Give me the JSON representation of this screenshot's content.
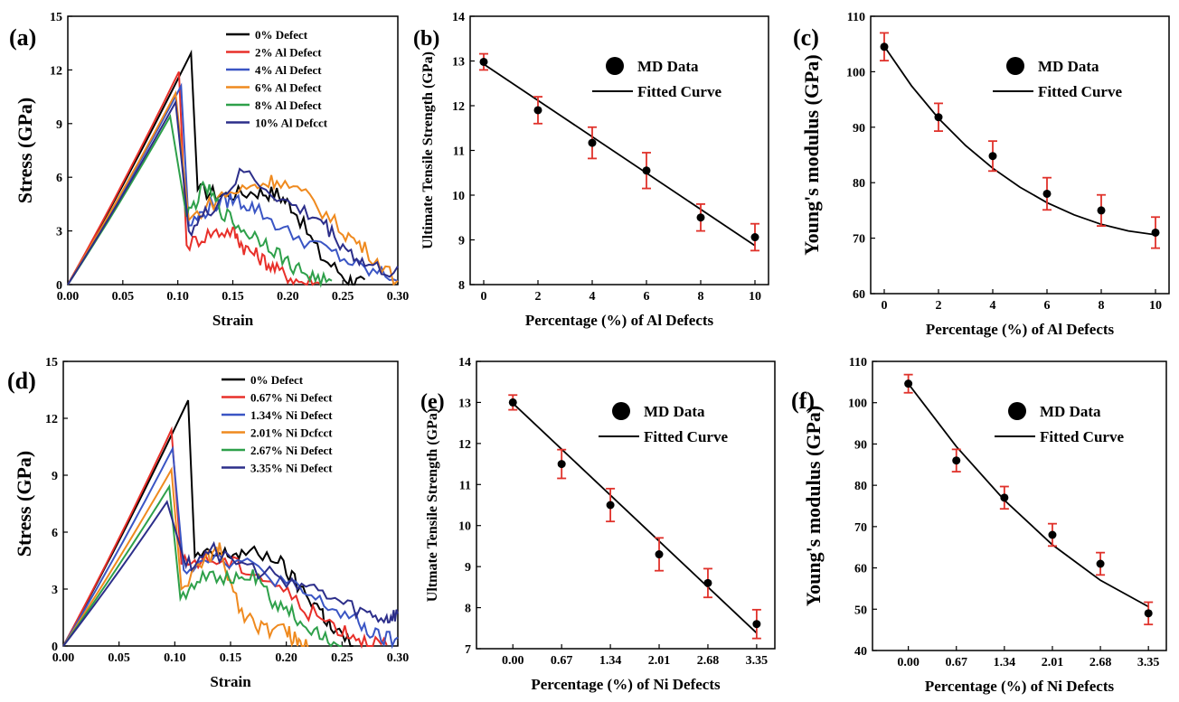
{
  "chart_data": [
    {
      "panel_label": "(a)",
      "type": "line",
      "xlabel": "Strain",
      "ylabel": "Stress (GPa)",
      "xlim": [
        0,
        0.3
      ],
      "ylim": [
        0,
        15
      ],
      "xticks": [
        "0.00",
        "0.05",
        "0.10",
        "0.15",
        "0.20",
        "0.25",
        "0.30"
      ],
      "yticks": [
        "0",
        "3",
        "6",
        "9",
        "12",
        "15"
      ],
      "legend_position": "top-right",
      "series": [
        {
          "name": "0% Defect",
          "color": "#000000",
          "peak": [
            0.112,
            12.95
          ],
          "drop": [
            0.118,
            5.3
          ],
          "wiggle": [
            [
              0.14,
              5.0
            ],
            [
              0.17,
              5.2
            ],
            [
              0.19,
              5.1
            ],
            [
              0.205,
              4.3
            ],
            [
              0.23,
              1.6
            ],
            [
              0.255,
              0.3
            ],
            [
              0.27,
              0.0
            ]
          ]
        },
        {
          "name": "2% Al Defect",
          "color": "#e8302a",
          "peak": [
            0.101,
            11.9
          ],
          "drop": [
            0.108,
            2.2
          ],
          "wiggle": [
            [
              0.13,
              2.9
            ],
            [
              0.15,
              3.0
            ],
            [
              0.16,
              2.1
            ],
            [
              0.175,
              1.5
            ],
            [
              0.19,
              0.8
            ],
            [
              0.21,
              0.2
            ],
            [
              0.23,
              0.0
            ]
          ]
        },
        {
          "name": "4% Al Defect",
          "color": "#3a55c4",
          "peak": [
            0.103,
            11.1
          ],
          "drop": [
            0.11,
            3.3
          ],
          "wiggle": [
            [
              0.13,
              4.4
            ],
            [
              0.15,
              4.8
            ],
            [
              0.17,
              4.3
            ],
            [
              0.2,
              2.9
            ],
            [
              0.24,
              1.8
            ],
            [
              0.27,
              0.8
            ],
            [
              0.3,
              0.4
            ]
          ]
        },
        {
          "name": "6% Al Defect",
          "color": "#ef8a1f",
          "peak": [
            0.098,
            10.7
          ],
          "drop": [
            0.11,
            3.6
          ],
          "wiggle": [
            [
              0.14,
              5.0
            ],
            [
              0.17,
              5.5
            ],
            [
              0.19,
              5.9
            ],
            [
              0.22,
              4.8
            ],
            [
              0.25,
              3.0
            ],
            [
              0.27,
              2.0
            ],
            [
              0.3,
              0.2
            ]
          ]
        },
        {
          "name": "8% Al Defect",
          "color": "#2ea04a",
          "peak": [
            0.093,
            9.4
          ],
          "drop": [
            0.108,
            3.8
          ],
          "wiggle": [
            [
              0.125,
              5.5
            ],
            [
              0.14,
              4.1
            ],
            [
              0.16,
              3.0
            ],
            [
              0.18,
              2.4
            ],
            [
              0.2,
              1.2
            ],
            [
              0.22,
              0.5
            ],
            [
              0.24,
              0.0
            ]
          ]
        },
        {
          "name": "10% Al Defcct",
          "color": "#2c2e8a",
          "peak": [
            0.098,
            10.2
          ],
          "drop": [
            0.11,
            3.0
          ],
          "wiggle": [
            [
              0.13,
              4.2
            ],
            [
              0.16,
              6.3
            ],
            [
              0.2,
              4.5
            ],
            [
              0.23,
              3.6
            ],
            [
              0.25,
              2.2
            ],
            [
              0.27,
              1.1
            ],
            [
              0.3,
              0.6
            ]
          ]
        }
      ]
    },
    {
      "panel_label": "(b)",
      "type": "scatter",
      "xlabel": "Percentage (%) of Al Defects",
      "ylabel": "Ultimate Tensile Strength (GPa)",
      "xlim": [
        -0.5,
        10.5
      ],
      "ylim": [
        8,
        14
      ],
      "xticks": [
        "0",
        "2",
        "4",
        "6",
        "8",
        "10"
      ],
      "yticks": [
        "8",
        "9",
        "10",
        "11",
        "12",
        "13",
        "14"
      ],
      "legend_position": "top-right",
      "series": [
        {
          "name": "MD Data",
          "x": [
            0,
            2,
            4,
            6,
            8,
            10
          ],
          "y": [
            12.98,
            11.9,
            11.17,
            10.55,
            9.5,
            9.06
          ],
          "err": [
            0.18,
            0.3,
            0.35,
            0.4,
            0.3,
            0.3
          ]
        },
        {
          "name": "Fitted Curve",
          "x": [
            0,
            10
          ],
          "y": [
            12.93,
            8.87
          ]
        }
      ]
    },
    {
      "panel_label": "(c)",
      "type": "scatter",
      "xlabel": "Percentage (%) of Al Defects",
      "ylabel": "Young's modulus (GPa)",
      "xlim": [
        -0.5,
        10.5
      ],
      "ylim": [
        60,
        110
      ],
      "xticks": [
        "0",
        "2",
        "4",
        "6",
        "8",
        "10"
      ],
      "yticks": [
        "60",
        "70",
        "80",
        "90",
        "100",
        "110"
      ],
      "legend_position": "top-right",
      "series": [
        {
          "name": "MD Data",
          "x": [
            0,
            2,
            4,
            6,
            8,
            10
          ],
          "y": [
            104.5,
            91.8,
            84.8,
            78.0,
            75.0,
            71.0
          ],
          "err": [
            2.5,
            2.5,
            2.7,
            2.9,
            2.8,
            2.8
          ]
        },
        {
          "name": "Fitted Curve",
          "x": [
            0,
            1,
            2,
            3,
            4,
            5,
            6,
            7,
            8,
            9,
            10
          ],
          "y": [
            104.6,
            97.5,
            91.6,
            86.7,
            82.6,
            79.2,
            76.4,
            74.2,
            72.5,
            71.3,
            70.6
          ]
        }
      ]
    },
    {
      "panel_label": "(d)",
      "type": "line",
      "xlabel": "Strain",
      "ylabel": "Stress (GPa)",
      "xlim": [
        0,
        0.3
      ],
      "ylim": [
        0,
        15
      ],
      "xticks": [
        "0.00",
        "0.05",
        "0.10",
        "0.15",
        "0.20",
        "0.25",
        "0.30"
      ],
      "yticks": [
        "0",
        "3",
        "6",
        "9",
        "12",
        "15"
      ],
      "legend_position": "top-right",
      "series": [
        {
          "name": "0% Defect",
          "color": "#000000",
          "peak": [
            0.112,
            12.95
          ],
          "drop": [
            0.118,
            4.7
          ],
          "wiggle": [
            [
              0.14,
              4.8
            ],
            [
              0.16,
              4.9
            ],
            [
              0.19,
              4.7
            ],
            [
              0.21,
              3.2
            ],
            [
              0.23,
              2.0
            ],
            [
              0.24,
              0.9
            ],
            [
              0.26,
              0.0
            ]
          ]
        },
        {
          "name": "0.67% Ni Defect",
          "color": "#e8302a",
          "peak": [
            0.097,
            11.4
          ],
          "drop": [
            0.106,
            4.3
          ],
          "wiggle": [
            [
              0.13,
              4.6
            ],
            [
              0.16,
              4.2
            ],
            [
              0.19,
              3.3
            ],
            [
              0.22,
              1.8
            ],
            [
              0.25,
              0.9
            ],
            [
              0.27,
              0.3
            ],
            [
              0.29,
              0.0
            ]
          ]
        },
        {
          "name": "1.34% Ni Defect",
          "color": "#3a55c4",
          "peak": [
            0.098,
            10.4
          ],
          "drop": [
            0.108,
            4.0
          ],
          "wiggle": [
            [
              0.13,
              4.8
            ],
            [
              0.16,
              4.4
            ],
            [
              0.2,
              3.3
            ],
            [
              0.23,
              2.3
            ],
            [
              0.26,
              1.4
            ],
            [
              0.28,
              0.5
            ],
            [
              0.3,
              0.2
            ]
          ]
        },
        {
          "name": "2.01% Ni Dcfcct",
          "color": "#ef8a1f",
          "peak": [
            0.097,
            9.3
          ],
          "drop": [
            0.106,
            3.0
          ],
          "wiggle": [
            [
              0.13,
              4.7
            ],
            [
              0.14,
              5.0
            ],
            [
              0.16,
              1.8
            ],
            [
              0.18,
              0.9
            ],
            [
              0.2,
              0.8
            ],
            [
              0.21,
              0.2
            ],
            [
              0.22,
              0.0
            ]
          ]
        },
        {
          "name": "2.67% Ni Defect",
          "color": "#2ea04a",
          "peak": [
            0.095,
            8.4
          ],
          "drop": [
            0.105,
            2.5
          ],
          "wiggle": [
            [
              0.125,
              3.9
            ],
            [
              0.15,
              3.4
            ],
            [
              0.17,
              3.7
            ],
            [
              0.19,
              2.2
            ],
            [
              0.21,
              1.5
            ],
            [
              0.23,
              0.4
            ],
            [
              0.25,
              0.0
            ]
          ]
        },
        {
          "name": "3.35% Ni Defect",
          "color": "#2c2e8a",
          "peak": [
            0.093,
            7.6
          ],
          "drop": [
            0.11,
            4.2
          ],
          "wiggle": [
            [
              0.13,
              5.1
            ],
            [
              0.17,
              4.0
            ],
            [
              0.21,
              3.4
            ],
            [
              0.24,
              2.5
            ],
            [
              0.27,
              1.7
            ],
            [
              0.29,
              1.4
            ],
            [
              0.3,
              1.7
            ]
          ]
        }
      ]
    },
    {
      "panel_label": "(e)",
      "type": "scatter",
      "xlabel": "Percentage (%) of Ni Defects",
      "ylabel": "Ultmate Tensile Strength (GPa)",
      "xlim": [
        -0.5,
        3.6
      ],
      "ylim": [
        7,
        14
      ],
      "xticks": [
        "0.00",
        "0.67",
        "1.34",
        "2.01",
        "2.68",
        "3.35"
      ],
      "yticks": [
        "7",
        "8",
        "9",
        "10",
        "11",
        "12",
        "13",
        "14"
      ],
      "legend_position": "top-right",
      "series": [
        {
          "name": "MD Data",
          "x": [
            0,
            0.67,
            1.34,
            2.01,
            2.68,
            3.35
          ],
          "y": [
            13.0,
            11.5,
            10.5,
            9.3,
            8.6,
            7.6
          ],
          "err": [
            0.18,
            0.35,
            0.4,
            0.4,
            0.35,
            0.35
          ]
        },
        {
          "name": "Fitted Curve",
          "x": [
            0,
            3.35
          ],
          "y": [
            12.98,
            7.38
          ]
        }
      ]
    },
    {
      "panel_label": "(f)",
      "type": "scatter",
      "xlabel": "Percentage (%) of Ni Defects",
      "ylabel": "Young's modulus (GPa)",
      "xlim": [
        -0.5,
        3.6
      ],
      "ylim": [
        40,
        110
      ],
      "xticks": [
        "0.00",
        "0.67",
        "1.34",
        "2.01",
        "2.68",
        "3.35"
      ],
      "yticks": [
        "40",
        "50",
        "60",
        "70",
        "80",
        "90",
        "100",
        "110"
      ],
      "legend_position": "top-right",
      "series": [
        {
          "name": "MD Data",
          "x": [
            0,
            0.67,
            1.34,
            2.01,
            2.68,
            3.35
          ],
          "y": [
            104.6,
            86.0,
            77.0,
            68.0,
            61.0,
            49.0
          ],
          "err": [
            2.2,
            2.7,
            2.7,
            2.7,
            2.7,
            2.7
          ]
        },
        {
          "name": "Fitted Curve",
          "x": [
            0,
            0.67,
            1.34,
            2.01,
            2.68,
            3.35
          ],
          "y": [
            104.6,
            89.4,
            76.4,
            65.6,
            57.0,
            50.6
          ]
        }
      ]
    }
  ]
}
